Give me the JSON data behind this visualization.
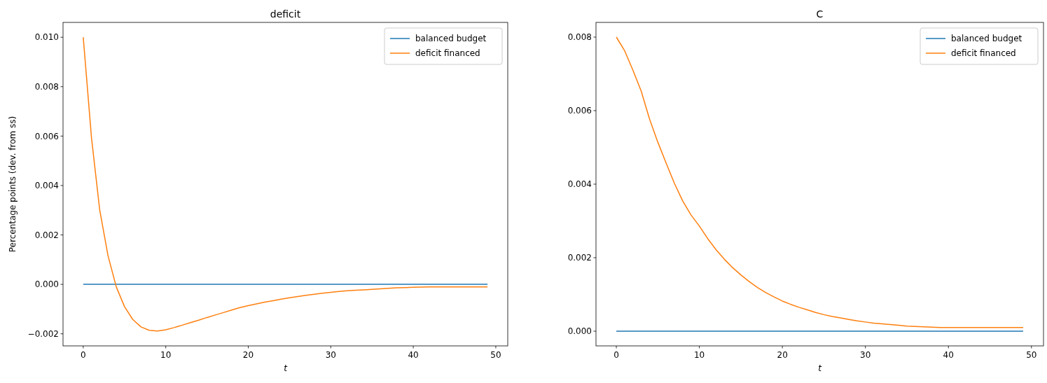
{
  "chart_data": [
    {
      "type": "line",
      "title": "deficit",
      "xlabel": "t",
      "ylabel": "Percentage points (dev. from ss)",
      "legend": "top right",
      "grid": false,
      "x": [
        0,
        1,
        2,
        3,
        4,
        5,
        6,
        7,
        8,
        9,
        10,
        11,
        12,
        13,
        14,
        15,
        16,
        17,
        18,
        19,
        20,
        21,
        22,
        23,
        24,
        25,
        26,
        27,
        28,
        29,
        30,
        31,
        32,
        33,
        34,
        35,
        36,
        37,
        38,
        39,
        40,
        41,
        42,
        43,
        44,
        45,
        46,
        47,
        48,
        49
      ],
      "xlim": [
        -2.45,
        51.45
      ],
      "xticks": [
        0,
        10,
        20,
        30,
        40,
        50
      ],
      "ylim": [
        -0.00249,
        0.0106
      ],
      "yticks": [
        {
          "value": -0.002,
          "label": "−0.002"
        },
        {
          "value": 0,
          "label": "0.000"
        },
        {
          "value": 0.002,
          "label": "0.002"
        },
        {
          "value": 0.004,
          "label": "0.004"
        },
        {
          "value": 0.006,
          "label": "0.006"
        },
        {
          "value": 0.008,
          "label": "0.008"
        },
        {
          "value": 0.01,
          "label": "0.010"
        }
      ],
      "series": [
        {
          "name": "balanced budget",
          "color": "#1f77b4",
          "values": [
            0,
            0,
            0,
            0,
            0,
            0,
            0,
            0,
            0,
            0,
            0,
            0,
            0,
            0,
            0,
            0,
            0,
            0,
            0,
            0,
            0,
            0,
            0,
            0,
            0,
            0,
            0,
            0,
            0,
            0,
            0,
            0,
            0,
            0,
            0,
            0,
            0,
            0,
            0,
            0,
            0,
            0,
            0,
            0,
            0,
            0,
            0,
            0,
            0,
            0
          ]
        },
        {
          "name": "deficit financed",
          "color": "#ff7f0e",
          "values": [
            0.01,
            0.00593,
            0.003,
            0.00116,
            -0.0001,
            -0.0009,
            -0.00142,
            -0.00172,
            -0.00186,
            -0.00189,
            -0.00184,
            -0.00175,
            -0.00165,
            -0.00155,
            -0.00145,
            -0.00134,
            -0.00124,
            -0.00114,
            -0.00104,
            -0.00094,
            -0.00086,
            -0.00079,
            -0.00072,
            -0.00066,
            -0.0006,
            -0.00054,
            -0.00049,
            -0.00044,
            -0.0004,
            -0.00036,
            -0.00032,
            -0.00029,
            -0.00026,
            -0.00024,
            -0.00022,
            -0.0002,
            -0.00018,
            -0.00016,
            -0.00014,
            -0.00013,
            -0.00012,
            -0.00011,
            -0.0001,
            -0.0001,
            -0.0001,
            -0.0001,
            -0.0001,
            -0.0001,
            -0.0001,
            -0.0001
          ]
        }
      ]
    },
    {
      "type": "line",
      "title": "C",
      "xlabel": "t",
      "legend": "top right",
      "grid": false,
      "x": [
        0,
        1,
        2,
        3,
        4,
        5,
        6,
        7,
        8,
        9,
        10,
        11,
        12,
        13,
        14,
        15,
        16,
        17,
        18,
        19,
        20,
        21,
        22,
        23,
        24,
        25,
        26,
        27,
        28,
        29,
        30,
        31,
        32,
        33,
        34,
        35,
        36,
        37,
        38,
        39,
        40,
        41,
        42,
        43,
        44,
        45,
        46,
        47,
        48,
        49
      ],
      "xlim": [
        -2.45,
        51.45
      ],
      "xticks": [
        0,
        10,
        20,
        30,
        40,
        50
      ],
      "ylim": [
        -0.0004,
        0.0084
      ],
      "yticks": [
        {
          "value": 0,
          "label": "0.000"
        },
        {
          "value": 0.002,
          "label": "0.002"
        },
        {
          "value": 0.004,
          "label": "0.004"
        },
        {
          "value": 0.006,
          "label": "0.006"
        },
        {
          "value": 0.008,
          "label": "0.008"
        }
      ],
      "series": [
        {
          "name": "balanced budget",
          "color": "#1f77b4",
          "values": [
            0,
            0,
            0,
            0,
            0,
            0,
            0,
            0,
            0,
            0,
            0,
            0,
            0,
            0,
            0,
            0,
            0,
            0,
            0,
            0,
            0,
            0,
            0,
            0,
            0,
            0,
            0,
            0,
            0,
            0,
            0,
            0,
            0,
            0,
            0,
            0,
            0,
            0,
            0,
            0,
            0,
            0,
            0,
            0,
            0,
            0,
            0,
            0,
            0,
            0
          ]
        },
        {
          "name": "deficit financed",
          "color": "#ff7f0e",
          "values": [
            0.008,
            0.00763,
            0.0071,
            0.00653,
            0.00577,
            0.00514,
            0.00457,
            0.00402,
            0.00354,
            0.00316,
            0.00286,
            0.00252,
            0.00222,
            0.00196,
            0.00173,
            0.00153,
            0.00135,
            0.00119,
            0.00105,
            0.00093,
            0.00082,
            0.00073,
            0.00065,
            0.00058,
            0.00051,
            0.00045,
            0.0004,
            0.00036,
            0.00032,
            0.00028,
            0.00025,
            0.00022,
            0.0002,
            0.00018,
            0.00016,
            0.00014,
            0.00013,
            0.00012,
            0.00011,
            0.0001,
            0.0001,
            0.0001,
            0.0001,
            0.0001,
            0.0001,
            0.0001,
            0.0001,
            0.0001,
            0.0001,
            0.0001
          ]
        }
      ]
    }
  ]
}
